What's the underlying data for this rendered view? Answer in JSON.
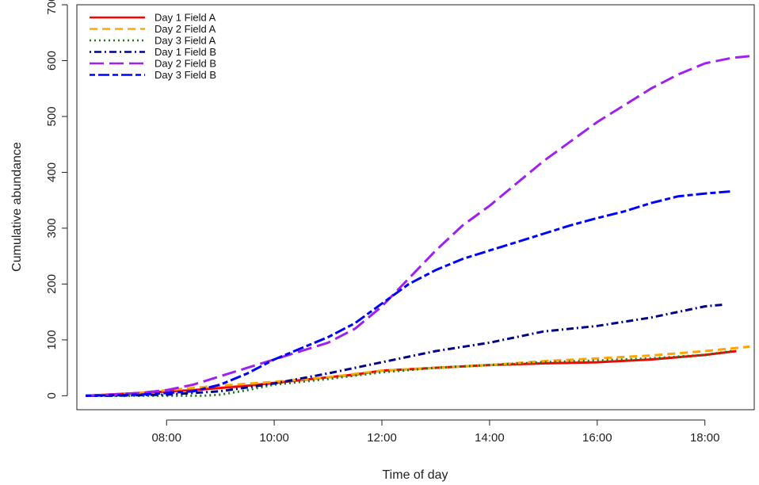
{
  "chart_data": {
    "type": "line",
    "xlabel": "Time of day",
    "ylabel": "Cumulative abundance",
    "xlim": [
      "06:20",
      "18:55"
    ],
    "ylim": [
      -25,
      700
    ],
    "x_ticks": [
      "08:00",
      "10:00",
      "12:00",
      "14:00",
      "16:00",
      "18:00"
    ],
    "y_ticks": [
      0,
      100,
      200,
      300,
      400,
      500,
      600,
      700
    ],
    "grid": false,
    "legend": "top-left",
    "series": [
      {
        "name": "Day 1 Field A",
        "color": "#ff0000",
        "dash": "solid",
        "x": [
          "06:30",
          "07:30",
          "08:30",
          "09:30",
          "10:30",
          "11:30",
          "12:00",
          "13:00",
          "14:00",
          "15:00",
          "16:00",
          "17:00",
          "18:00",
          "18:35"
        ],
        "y": [
          0,
          5,
          10,
          18,
          28,
          38,
          45,
          50,
          55,
          58,
          60,
          65,
          73,
          80
        ]
      },
      {
        "name": "Day 2 Field A",
        "color": "#ffa500",
        "dash": "dashed",
        "x": [
          "06:30",
          "07:30",
          "08:00",
          "09:00",
          "10:00",
          "11:00",
          "12:00",
          "13:00",
          "14:00",
          "15:00",
          "16:00",
          "17:00",
          "18:00",
          "18:50"
        ],
        "y": [
          0,
          5,
          10,
          18,
          25,
          33,
          45,
          50,
          55,
          62,
          67,
          72,
          80,
          88
        ]
      },
      {
        "name": "Day 3 Field A",
        "color": "#1a7a1a",
        "dash": "dotted",
        "x": [
          "06:30",
          "07:00",
          "08:00",
          "08:40",
          "09:00",
          "09:30",
          "10:00",
          "11:00",
          "12:00",
          "13:00",
          "14:00",
          "15:00",
          "16:00",
          "17:00",
          "18:00",
          "18:30"
        ],
        "y": [
          0,
          0,
          0,
          0,
          2,
          10,
          20,
          30,
          42,
          50,
          55,
          60,
          63,
          67,
          73,
          80
        ]
      },
      {
        "name": "Day 1 Field B",
        "color": "#00008b",
        "dash": "dotdash",
        "x": [
          "06:30",
          "07:00",
          "08:00",
          "09:00",
          "10:00",
          "11:00",
          "12:00",
          "13:00",
          "14:00",
          "15:00",
          "16:00",
          "17:00",
          "18:00",
          "18:20"
        ],
        "y": [
          0,
          0,
          2,
          8,
          22,
          40,
          60,
          80,
          95,
          115,
          125,
          140,
          160,
          163
        ]
      },
      {
        "name": "Day 2 Field B",
        "color": "#a020f0",
        "dash": "longdash",
        "x": [
          "06:30",
          "07:30",
          "08:00",
          "08:30",
          "09:00",
          "09:30",
          "10:00",
          "10:30",
          "11:00",
          "11:30",
          "12:00",
          "12:30",
          "13:00",
          "13:30",
          "14:00",
          "14:30",
          "15:00",
          "15:30",
          "16:00",
          "16:30",
          "17:00",
          "17:30",
          "18:00",
          "18:30",
          "18:50"
        ],
        "y": [
          0,
          5,
          10,
          20,
          35,
          50,
          65,
          80,
          95,
          120,
          160,
          210,
          260,
          305,
          340,
          380,
          420,
          455,
          490,
          520,
          550,
          575,
          595,
          605,
          608
        ]
      },
      {
        "name": "Day 3 Field B",
        "color": "#0000ff",
        "dash": "twodash",
        "x": [
          "06:30",
          "07:30",
          "08:00",
          "08:30",
          "09:00",
          "09:30",
          "10:00",
          "10:30",
          "11:00",
          "11:30",
          "12:00",
          "12:30",
          "13:00",
          "13:30",
          "14:00",
          "14:30",
          "15:00",
          "15:30",
          "16:00",
          "16:30",
          "17:00",
          "17:30",
          "18:00",
          "18:30"
        ],
        "y": [
          0,
          2,
          5,
          8,
          20,
          40,
          65,
          85,
          105,
          130,
          165,
          200,
          225,
          245,
          260,
          275,
          290,
          305,
          318,
          330,
          345,
          357,
          362,
          366
        ]
      }
    ]
  }
}
